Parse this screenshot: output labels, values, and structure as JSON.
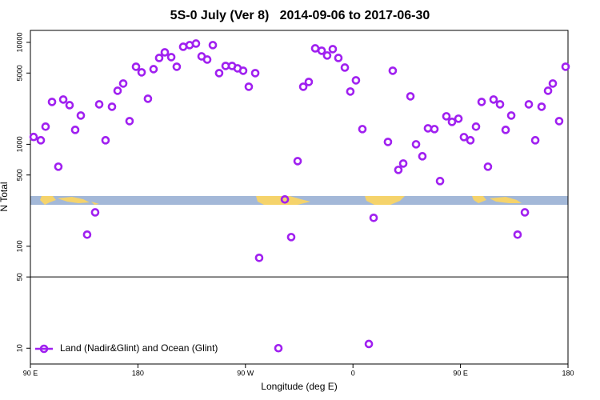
{
  "chart_data": {
    "type": "scatter",
    "title": "5S-0 July (Ver 8)   2014-09-06 to 2017-06-30",
    "x_label": "Longitude (deg E)",
    "y_label": "N Total",
    "log_y": true,
    "legend": "bottomleft",
    "xlim": [
      90,
      540
    ],
    "ylim": [
      7,
      13100
    ],
    "xticks": [
      {
        "value": 90,
        "label": "90 E"
      },
      180,
      {
        "value": 270,
        "label": "90 W"
      },
      {
        "value": 360,
        "label": "0"
      },
      {
        "value": 450,
        "label": "90 E"
      },
      {
        "value": 540,
        "label": "180"
      }
    ],
    "yticks": [
      10,
      50,
      100,
      500,
      1000,
      5000,
      10000
    ],
    "reference_line": 50,
    "x": [
      92.7,
      98.7,
      102.7,
      108.1,
      113.4,
      117.5,
      122.8,
      127.5,
      132.2,
      137.5,
      144.2,
      147.6,
      152.9,
      158.3,
      163.0,
      167.7,
      173.0,
      178.4,
      183.1,
      188.4,
      193.1,
      197.8,
      202.5,
      207.9,
      212.5,
      217.9,
      223.3,
      228.6,
      233.3,
      238.0,
      242.7,
      248.0,
      253.4,
      258.8,
      263.4,
      268.1,
      272.8,
      278.2,
      281.5,
      297.6,
      303.0,
      308.3,
      313.7,
      318.4,
      323.0,
      328.4,
      333.8,
      338.4,
      343.1,
      347.8,
      353.2,
      357.8,
      362.5,
      367.9,
      373.3,
      377.3,
      389.3,
      393.3,
      398.0,
      402.1,
      408.1,
      412.8,
      418.1,
      422.8,
      428.2,
      432.9,
      438.2,
      442.9,
      448.3,
      452.9,
      458.3,
      463.0,
      467.7,
      473.0,
      477.7,
      483.1,
      487.8,
      492.5,
      497.8,
      503.9,
      507.2,
      512.6,
      517.9,
      523.3,
      527.3,
      532.6,
      538.0
    ],
    "series": [
      {
        "name": "Land (Nadir&Glint) and Ocean (Glint)",
        "color": "#a020f0",
        "values": [
          1180,
          1095,
          1490,
          2605,
          603,
          2750,
          2420,
          1385,
          1915,
          130,
          215,
          2467,
          1095,
          2337,
          3352,
          3945,
          1688,
          5766,
          5080,
          2800,
          5460,
          7030,
          7980,
          7160,
          5766,
          9050,
          9400,
          9730,
          7290,
          6780,
          9400,
          4990,
          5870,
          5870,
          5560,
          5270,
          3670,
          4990,
          77,
          10,
          288,
          123,
          684,
          3670,
          4090,
          8730,
          8280,
          7430,
          8580,
          7030,
          5660,
          3295,
          4240,
          1410,
          11,
          190,
          1055,
          5270,
          561,
          648,
          2955,
          1000,
          763,
          1435,
          1410,
          436,
          1882,
          1660,
          1783,
          1177,
          1095,
          1490,
          2605,
          603,
          2750,
          2467,
          1385,
          1915,
          130,
          215,
          2467,
          1095,
          2337,
          3352,
          3945,
          1688,
          5766
        ]
      }
    ]
  }
}
